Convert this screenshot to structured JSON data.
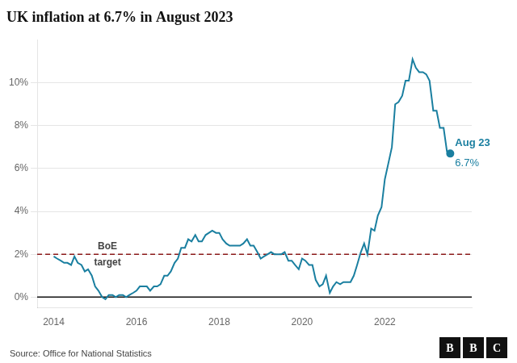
{
  "chart_data": {
    "type": "line",
    "title": "UK inflation at 6.7% in August 2023",
    "source": "Source: Office for National Statistics",
    "logo": "BBC",
    "color": "#1a7fa0",
    "grid": "y",
    "xlim": [
      2013.6,
      2024.1
    ],
    "xticks": [
      2014,
      2016,
      2018,
      2020,
      2022
    ],
    "ylim": [
      -0.5,
      12.0
    ],
    "yticks": [
      {
        "value": 0,
        "label": "0%"
      },
      {
        "value": 2,
        "label": "2%"
      },
      {
        "value": 4,
        "label": "4%"
      },
      {
        "value": 6,
        "label": "6%"
      },
      {
        "value": 8,
        "label": "8%"
      },
      {
        "value": 10,
        "label": "10%"
      }
    ],
    "hlines": [
      {
        "y": 2.0,
        "color": "#8b1a1a",
        "line_style": "dashed"
      },
      {
        "y": 0,
        "color": "#111111",
        "line_style": "solid"
      }
    ],
    "annotations": [
      {
        "text": [
          "BoE",
          "target"
        ],
        "x": 2015.3,
        "y": 2.0,
        "color": "#444444"
      },
      {
        "text": [
          "Aug 23",
          "6.7%"
        ],
        "x": 2023.58,
        "y": 6.7,
        "color": "#1a7fa0"
      }
    ],
    "x": [
      2014.0,
      2014.08,
      2014.17,
      2014.25,
      2014.33,
      2014.42,
      2014.5,
      2014.58,
      2014.67,
      2014.75,
      2014.83,
      2014.92,
      2015.0,
      2015.08,
      2015.17,
      2015.25,
      2015.33,
      2015.42,
      2015.5,
      2015.58,
      2015.67,
      2015.75,
      2015.83,
      2015.92,
      2016.0,
      2016.08,
      2016.17,
      2016.25,
      2016.33,
      2016.42,
      2016.5,
      2016.58,
      2016.67,
      2016.75,
      2016.83,
      2016.92,
      2017.0,
      2017.08,
      2017.17,
      2017.25,
      2017.33,
      2017.42,
      2017.5,
      2017.58,
      2017.67,
      2017.75,
      2017.83,
      2017.92,
      2018.0,
      2018.08,
      2018.17,
      2018.25,
      2018.33,
      2018.42,
      2018.5,
      2018.58,
      2018.67,
      2018.75,
      2018.83,
      2018.92,
      2019.0,
      2019.08,
      2019.17,
      2019.25,
      2019.33,
      2019.42,
      2019.5,
      2019.58,
      2019.67,
      2019.75,
      2019.83,
      2019.92,
      2020.0,
      2020.08,
      2020.17,
      2020.25,
      2020.33,
      2020.42,
      2020.5,
      2020.58,
      2020.67,
      2020.75,
      2020.83,
      2020.92,
      2021.0,
      2021.08,
      2021.17,
      2021.25,
      2021.33,
      2021.42,
      2021.5,
      2021.58,
      2021.67,
      2021.75,
      2021.83,
      2021.92,
      2022.0,
      2022.08,
      2022.17,
      2022.25,
      2022.33,
      2022.42,
      2022.5,
      2022.58,
      2022.67,
      2022.75,
      2022.83,
      2022.92,
      2023.0,
      2023.08,
      2023.17,
      2023.25,
      2023.33,
      2023.42,
      2023.5,
      2023.58
    ],
    "values": [
      1.9,
      1.8,
      1.7,
      1.6,
      1.6,
      1.5,
      1.9,
      1.6,
      1.5,
      1.2,
      1.3,
      1.0,
      0.5,
      0.3,
      0.0,
      -0.1,
      0.1,
      0.1,
      0.0,
      0.1,
      0.1,
      0.0,
      0.1,
      0.2,
      0.3,
      0.5,
      0.5,
      0.5,
      0.3,
      0.5,
      0.5,
      0.6,
      1.0,
      1.0,
      1.2,
      1.6,
      1.8,
      2.3,
      2.3,
      2.7,
      2.6,
      2.9,
      2.6,
      2.6,
      2.9,
      3.0,
      3.1,
      3.0,
      3.0,
      2.7,
      2.5,
      2.4,
      2.4,
      2.4,
      2.4,
      2.5,
      2.7,
      2.4,
      2.4,
      2.1,
      1.8,
      1.9,
      2.0,
      2.1,
      2.0,
      2.0,
      2.0,
      2.1,
      1.7,
      1.7,
      1.5,
      1.3,
      1.8,
      1.7,
      1.5,
      1.5,
      0.8,
      0.5,
      0.6,
      1.0,
      0.2,
      0.5,
      0.7,
      0.6,
      0.7,
      0.7,
      0.7,
      1.0,
      1.5,
      2.1,
      2.5,
      2.0,
      3.2,
      3.1,
      3.8,
      4.2,
      5.5,
      6.2,
      7.0,
      9.0,
      9.1,
      9.4,
      10.1,
      10.1,
      11.1,
      10.7,
      10.5,
      10.5,
      10.4,
      10.1,
      8.7,
      8.7,
      7.9,
      7.9,
      6.8,
      6.7
    ]
  }
}
